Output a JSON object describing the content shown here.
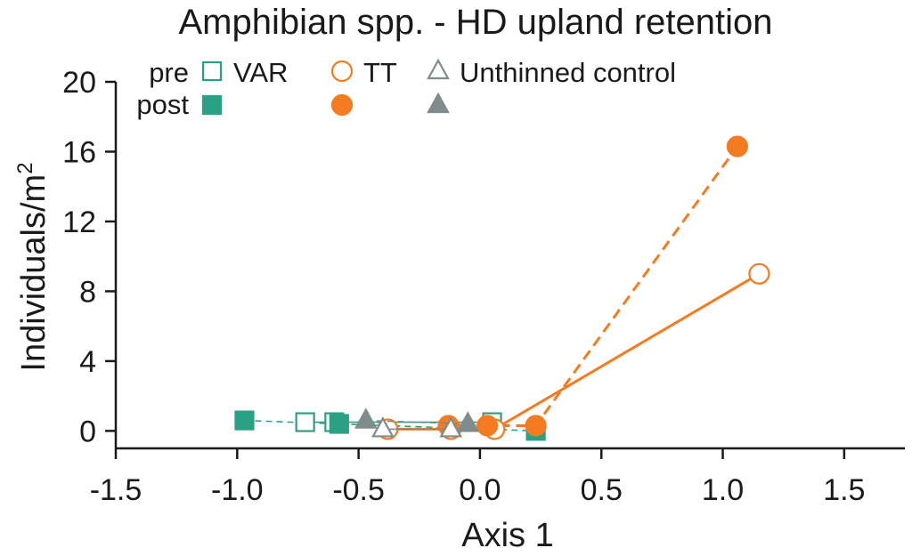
{
  "chart_data": {
    "type": "scatter",
    "title": "Amphibian spp. - HD upland retention",
    "xlabel": "Axis 1",
    "ylabel_main": "Individuals/m",
    "ylabel_sup": "2",
    "xlim": [
      -1.5,
      1.75
    ],
    "ylim": [
      -1,
      20
    ],
    "xticks": [
      -1.5,
      -1.0,
      -0.5,
      0.0,
      0.5,
      1.0,
      1.5
    ],
    "xtick_labels": [
      "-1.5",
      "-1.0",
      "-0.5",
      "0.0",
      "0.5",
      "1.0",
      "1.5"
    ],
    "yticks": [
      0,
      4,
      8,
      12,
      16,
      20
    ],
    "ytick_labels": [
      "0",
      "4",
      "8",
      "12",
      "16",
      "20"
    ],
    "legend": {
      "row_labels": {
        "pre": "pre",
        "post": "post"
      },
      "entries": [
        {
          "name": "VAR",
          "series": "VAR"
        },
        {
          "name": "TT",
          "series": "TT"
        },
        {
          "name": "Unthinned control",
          "series": "Unthinned control"
        }
      ],
      "placement": "top-left"
    },
    "series": [
      {
        "name": "VAR",
        "color": "#2aa084",
        "marker": "square",
        "pre": [
          {
            "x": -0.72,
            "y": 0.5
          },
          {
            "x": -0.6,
            "y": 0.5
          },
          {
            "x": 0.05,
            "y": 0.5
          }
        ],
        "post": [
          {
            "x": -0.97,
            "y": 0.6
          },
          {
            "x": -0.58,
            "y": 0.4
          },
          {
            "x": 0.23,
            "y": 0.0
          }
        ]
      },
      {
        "name": "TT",
        "color": "#f47b20",
        "marker": "circle",
        "pre": [
          {
            "x": -0.38,
            "y": 0.1
          },
          {
            "x": -0.12,
            "y": 0.1
          },
          {
            "x": 0.06,
            "y": 0.1
          },
          {
            "x": 1.15,
            "y": 9.0
          }
        ],
        "post": [
          {
            "x": -0.13,
            "y": 0.3
          },
          {
            "x": 0.03,
            "y": 0.3
          },
          {
            "x": 0.23,
            "y": 0.3
          },
          {
            "x": 1.06,
            "y": 16.3
          }
        ]
      },
      {
        "name": "Unthinned control",
        "color": "#7f8c8c",
        "marker": "triangle",
        "pre": [
          {
            "x": -0.4,
            "y": 0.1
          },
          {
            "x": -0.12,
            "y": 0.1
          }
        ],
        "post": [
          {
            "x": -0.47,
            "y": 0.6
          },
          {
            "x": -0.05,
            "y": 0.4
          }
        ]
      }
    ]
  }
}
